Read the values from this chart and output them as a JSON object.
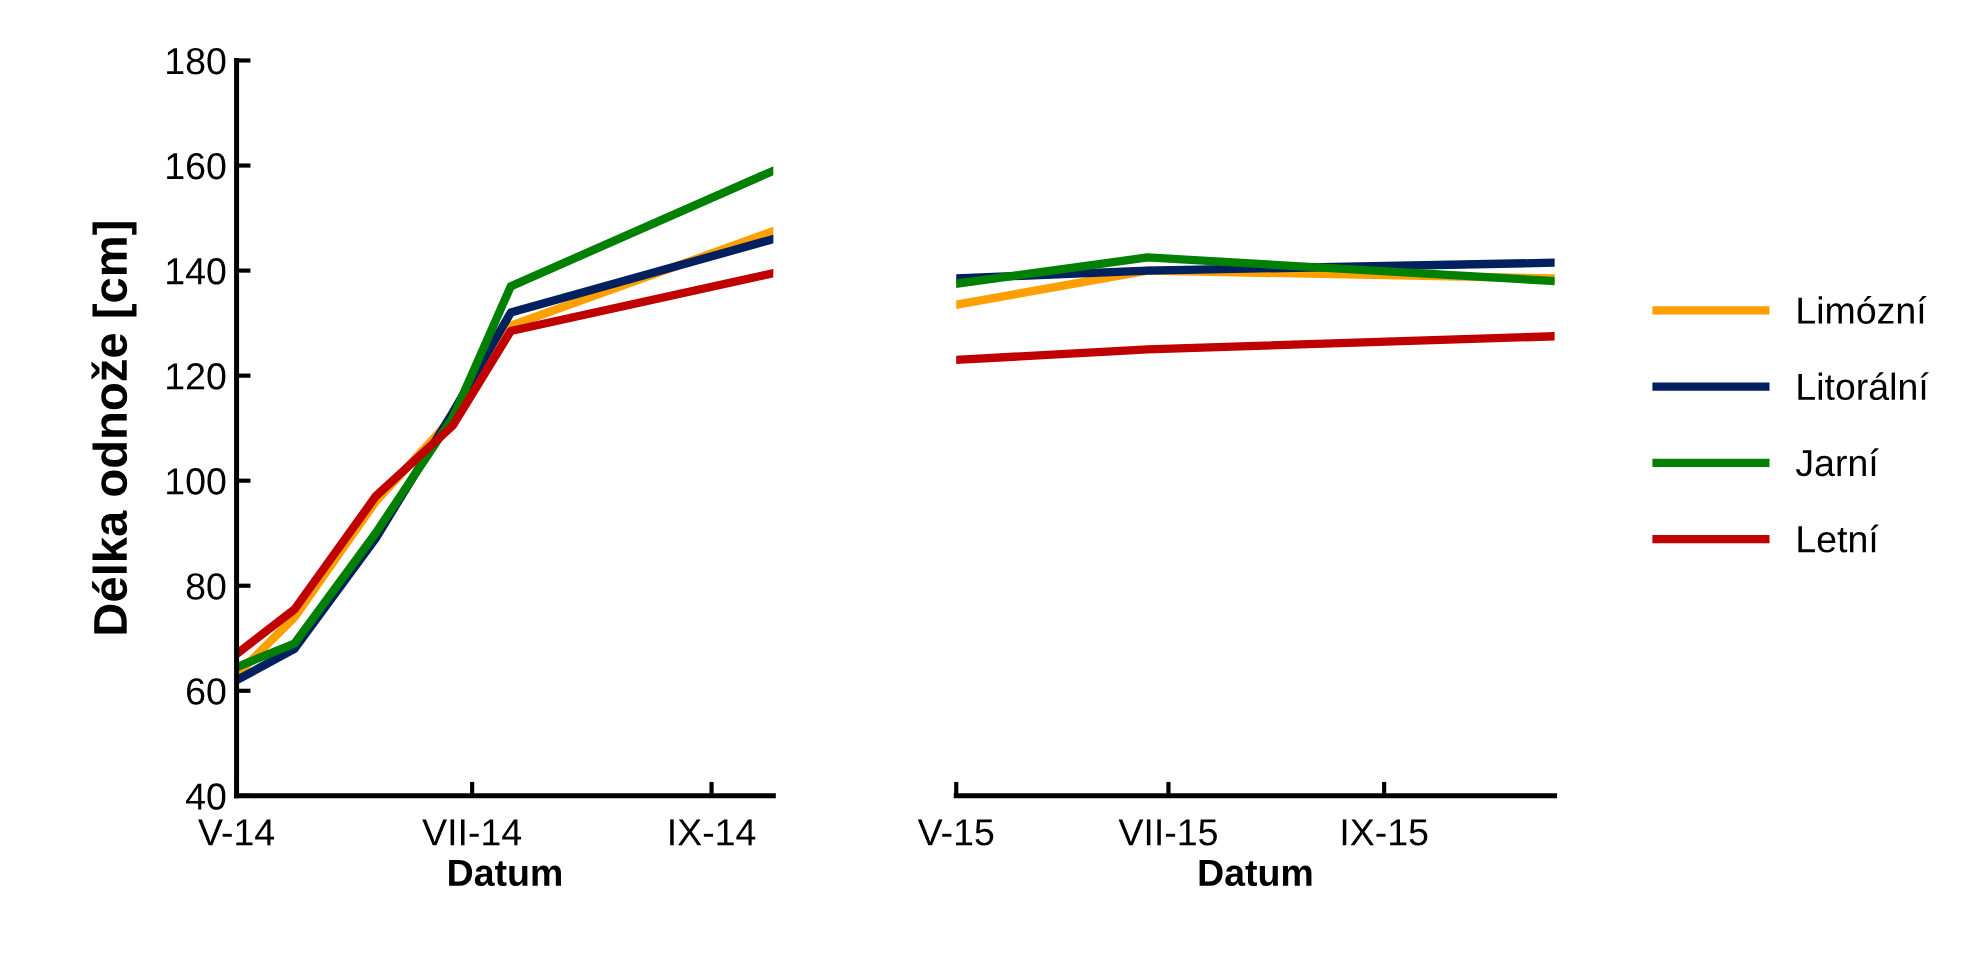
{
  "chart_data": [
    {
      "type": "line",
      "ylabel": "Délka odnože [cm]",
      "xlabel": "Datum",
      "x": [
        "2014-05-01",
        "2014-05-16",
        "2014-06-06",
        "2014-06-26",
        "2014-07-11",
        "2014-09-17"
      ],
      "xlim": [
        "2014-05-01",
        "2014-09-17"
      ],
      "xticks": [
        {
          "value": "2014-05-01",
          "label": "V-14"
        },
        {
          "value": "2014-07-01",
          "label": "VII-14"
        },
        {
          "value": "2014-09-01",
          "label": "IX-14"
        }
      ],
      "ylim": [
        40,
        180
      ],
      "yticks": [
        40,
        60,
        80,
        100,
        120,
        140,
        160,
        180
      ],
      "grid": false,
      "legend": false,
      "marker": "none",
      "line_style": "solid",
      "series": [
        {
          "color": "#ffa000",
          "values": [
            63,
            74,
            96,
            112,
            129.5,
            147.5
          ]
        },
        {
          "color": "#002060",
          "values": [
            62,
            68,
            89,
            113,
            132,
            146
          ]
        },
        {
          "color": "#008000",
          "values": [
            64.5,
            69,
            90,
            112,
            137,
            159
          ]
        },
        {
          "color": "#c00000",
          "values": [
            67,
            75.5,
            97,
            110.5,
            128.5,
            139.5
          ]
        }
      ]
    },
    {
      "type": "line",
      "xlabel": "Datum",
      "x": [
        "2015-05-01",
        "2015-06-25",
        "2015-10-20"
      ],
      "xlim": [
        "2015-05-01",
        "2015-10-20"
      ],
      "xticks": [
        {
          "value": "2015-05-01",
          "label": "V-15"
        },
        {
          "value": "2015-07-01",
          "label": "VII-15"
        },
        {
          "value": "2015-09-01",
          "label": "IX-15"
        }
      ],
      "ylim": [
        40,
        180
      ],
      "tick_labels": "x",
      "grid": false,
      "legend": "right",
      "marker": "none",
      "line_style": "solid",
      "series": [
        {
          "name": "Limózní",
          "color": "#ffa000",
          "values": [
            133.5,
            140,
            138.5
          ]
        },
        {
          "name": "Litorální",
          "color": "#002060",
          "values": [
            138.5,
            140,
            141.5
          ]
        },
        {
          "name": "Jarní",
          "color": "#008000",
          "values": [
            137.5,
            142.5,
            138
          ]
        },
        {
          "name": "Letní",
          "color": "#c00000",
          "values": [
            123,
            125,
            127.5
          ]
        }
      ]
    }
  ]
}
